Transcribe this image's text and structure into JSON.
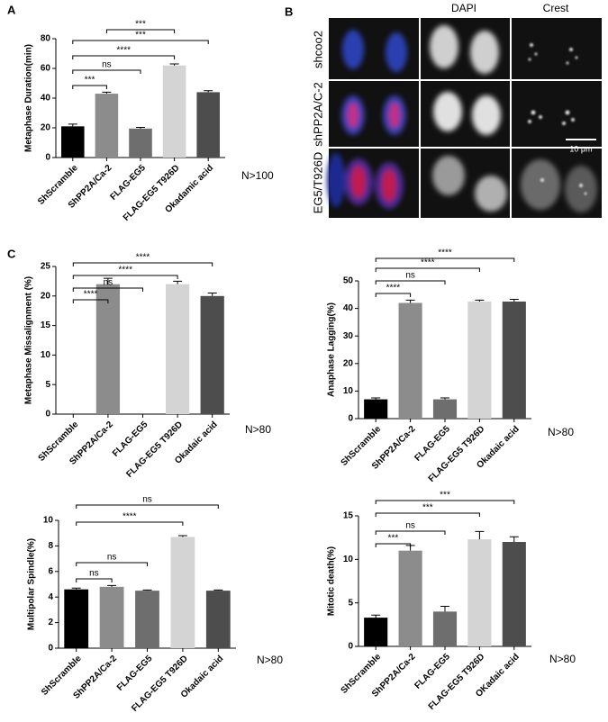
{
  "image_panel": {
    "label": "B",
    "columns": [
      "DAPI",
      "Crest"
    ],
    "rows": [
      "shcoo2",
      "shPP2A/C-2",
      "EG5/T926D"
    ],
    "scale_bar": "10 μm"
  },
  "chart_data": [
    {
      "type": "bar",
      "panel": "A",
      "y_label": "Metaphase Duration(min)",
      "categories": [
        "ShScramble",
        "ShPP2A/Ca-2",
        "FLAG-EG5",
        "FLAG-EG5 T926D",
        "Okadamic acid"
      ],
      "values": [
        21,
        43,
        19.5,
        62,
        44
      ],
      "errors": [
        1.5,
        1,
        0.8,
        1,
        1
      ],
      "colors": [
        "#000000",
        "#8c8c8c",
        "#6e6e6e",
        "#d4d4d4",
        "#4d4d4d"
      ],
      "ylim": [
        0,
        80
      ],
      "yticks": [
        0,
        20,
        40,
        60,
        80
      ],
      "comparisons": [
        {
          "label": "***",
          "pair": [
            "ShPP2A/Ca-2",
            "FLAG-EG5 T926D"
          ]
        },
        {
          "label": "***",
          "pair": [
            "ShScramble",
            "Okadamic acid"
          ]
        },
        {
          "label": "****",
          "pair": [
            "ShScramble",
            "FLAG-EG5 T926D"
          ]
        },
        {
          "label": "ns",
          "pair": [
            "ShScramble",
            "FLAG-EG5"
          ]
        },
        {
          "label": "***",
          "pair": [
            "ShScramble",
            "ShPP2A/Ca-2"
          ]
        }
      ],
      "note": "N>100"
    },
    {
      "type": "bar",
      "panel": "C",
      "y_label": "Metaphase Missalignment (%)",
      "categories": [
        "ShScramble",
        "ShPP2A/Ca-2",
        "FLAG-EG5",
        "FLAG-EG5 T926D",
        "Okadaic acid"
      ],
      "values": [
        0,
        22,
        0,
        22,
        20
      ],
      "errors": [
        0,
        1,
        0,
        0.5,
        0.5
      ],
      "colors": [
        "#000000",
        "#8c8c8c",
        "#6e6e6e",
        "#d4d4d4",
        "#4d4d4d"
      ],
      "ylim": [
        0,
        25
      ],
      "yticks": [
        0,
        5,
        10,
        15,
        20,
        25
      ],
      "comparisons": [
        {
          "label": "****",
          "pair": [
            "ShScramble",
            "Okadaic acid"
          ]
        },
        {
          "label": "****",
          "pair": [
            "ShScramble",
            "FLAG-EG5 T926D"
          ]
        },
        {
          "label": "ns",
          "pair": [
            "ShScramble",
            "FLAG-EG5"
          ]
        },
        {
          "label": "****",
          "pair": [
            "ShScramble",
            "ShPP2A/Ca-2"
          ]
        }
      ],
      "note": "N>80"
    },
    {
      "type": "bar",
      "y_label": "Anaphase Lagging(%)",
      "categories": [
        "ShScramble",
        "ShPP2A/Ca-2",
        "FLAG-EG5",
        "FLAG-EG5 T926D",
        "Okadaic acid"
      ],
      "values": [
        7,
        42,
        7,
        42.5,
        42.5
      ],
      "errors": [
        0.5,
        1,
        0.5,
        0.5,
        0.8
      ],
      "colors": [
        "#000000",
        "#8c8c8c",
        "#6e6e6e",
        "#d4d4d4",
        "#4d4d4d"
      ],
      "ylim": [
        0,
        50
      ],
      "yticks": [
        0,
        10,
        20,
        30,
        40,
        50
      ],
      "comparisons": [
        {
          "label": "****",
          "pair": [
            "ShScramble",
            "Okadaic acid"
          ]
        },
        {
          "label": "****",
          "pair": [
            "ShScramble",
            "FLAG-EG5 T926D"
          ]
        },
        {
          "label": "ns",
          "pair": [
            "ShScramble",
            "FLAG-EG5"
          ]
        },
        {
          "label": "****",
          "pair": [
            "ShScramble",
            "ShPP2A/Ca-2"
          ]
        }
      ],
      "note": "N>80"
    },
    {
      "type": "bar",
      "y_label": "Multipolar Spindle(%)",
      "categories": [
        "ShScramble",
        "ShPP2A/Ca-2",
        "FLAG-EG5",
        "FLAG-EG5 T926D",
        "Okadaic acid"
      ],
      "values": [
        4.6,
        4.8,
        4.5,
        8.7,
        4.5
      ],
      "errors": [
        0.1,
        0.1,
        0.05,
        0.1,
        0.05
      ],
      "colors": [
        "#000000",
        "#8c8c8c",
        "#6e6e6e",
        "#d4d4d4",
        "#4d4d4d"
      ],
      "ylim": [
        0,
        10
      ],
      "yticks": [
        0,
        2,
        4,
        6,
        8,
        10
      ],
      "comparisons": [
        {
          "label": "ns",
          "pair": [
            "ShScramble",
            "Okadaic acid"
          ]
        },
        {
          "label": "****",
          "pair": [
            "ShScramble",
            "FLAG-EG5 T926D"
          ]
        },
        {
          "label": "ns",
          "pair": [
            "ShScramble",
            "FLAG-EG5"
          ]
        },
        {
          "label": "ns",
          "pair": [
            "ShScramble",
            "ShPP2A/Ca-2"
          ]
        }
      ],
      "note": "N>80"
    },
    {
      "type": "bar",
      "y_label": "Mitotic death(%)",
      "categories": [
        "ShScramble",
        "ShPP2A/Ca-2",
        "FLAG-EG5",
        "FLAG-EG5 T926D",
        "OKadaic acid"
      ],
      "values": [
        3.3,
        11,
        4,
        12.3,
        12
      ],
      "errors": [
        0.3,
        0.6,
        0.6,
        0.9,
        0.6
      ],
      "colors": [
        "#000000",
        "#8c8c8c",
        "#6e6e6e",
        "#d4d4d4",
        "#4d4d4d"
      ],
      "ylim": [
        0,
        15
      ],
      "yticks": [
        0,
        5,
        10,
        15
      ],
      "comparisons": [
        {
          "label": "***",
          "pair": [
            "ShScramble",
            "OKadaic acid"
          ]
        },
        {
          "label": "***",
          "pair": [
            "ShScramble",
            "FLAG-EG5 T926D"
          ]
        },
        {
          "label": "ns",
          "pair": [
            "ShScramble",
            "FLAG-EG5"
          ]
        },
        {
          "label": "***",
          "pair": [
            "ShScramble",
            "ShPP2A/Ca-2"
          ]
        }
      ],
      "note": "N>80"
    }
  ]
}
